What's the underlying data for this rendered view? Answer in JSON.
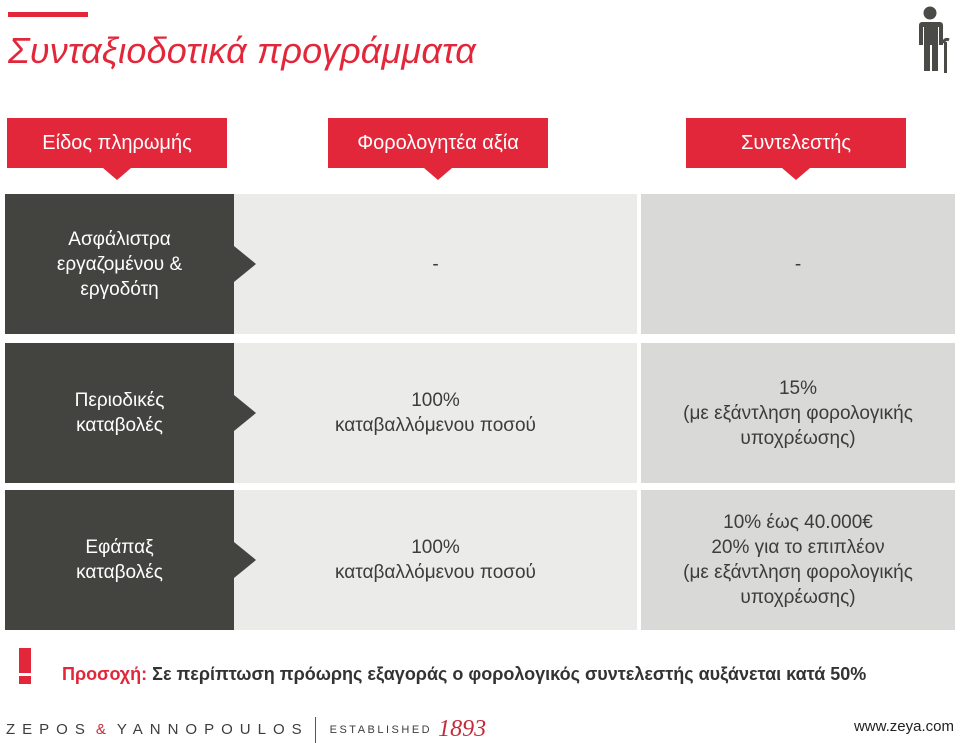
{
  "title": "Συνταξιοδοτικά προγράμματα",
  "colors": {
    "accent": "#e2273a",
    "dark": "#43443f",
    "light": "#ebebea",
    "mid": "#d9d9d8"
  },
  "icons": {
    "top_right": "elderly-person-icon",
    "notice": "warning-icon"
  },
  "headers": [
    "Είδος πληρωμής",
    "Φορολογητέα αξία",
    "Συντελεστής"
  ],
  "rows": [
    {
      "type": [
        "Ασφάλιστρα",
        "εργαζομένου &",
        "εργοδότη"
      ],
      "taxable": [
        "-"
      ],
      "rate": [
        "-"
      ]
    },
    {
      "type": [
        "Περιοδικές",
        "καταβολές"
      ],
      "taxable": [
        "100%",
        "καταβαλλόμενου ποσού"
      ],
      "rate": [
        "15%",
        "(με εξάντληση φορολογικής",
        "υποχρέωσης)"
      ]
    },
    {
      "type": [
        "Εφάπαξ",
        "καταβολές"
      ],
      "taxable": [
        "100%",
        "καταβαλλόμενου ποσού"
      ],
      "rate": [
        "10% έως 40.000€",
        "20% για το επιπλέον",
        "(με εξάντληση φορολογικής",
        "υποχρέωσης)"
      ]
    }
  ],
  "notice": {
    "label": "Προσοχή:",
    "text": "Σε περίπτωση πρόωρης εξαγοράς ο φορολογικός συντελεστής αυξάνεται κατά 50%"
  },
  "footer": {
    "brand_left": "ZEPOS",
    "brand_amp": "&",
    "brand_right": "YANNOPOULOS",
    "established": "ESTABLISHED",
    "year": "1893",
    "url": "www.zeya.com"
  }
}
